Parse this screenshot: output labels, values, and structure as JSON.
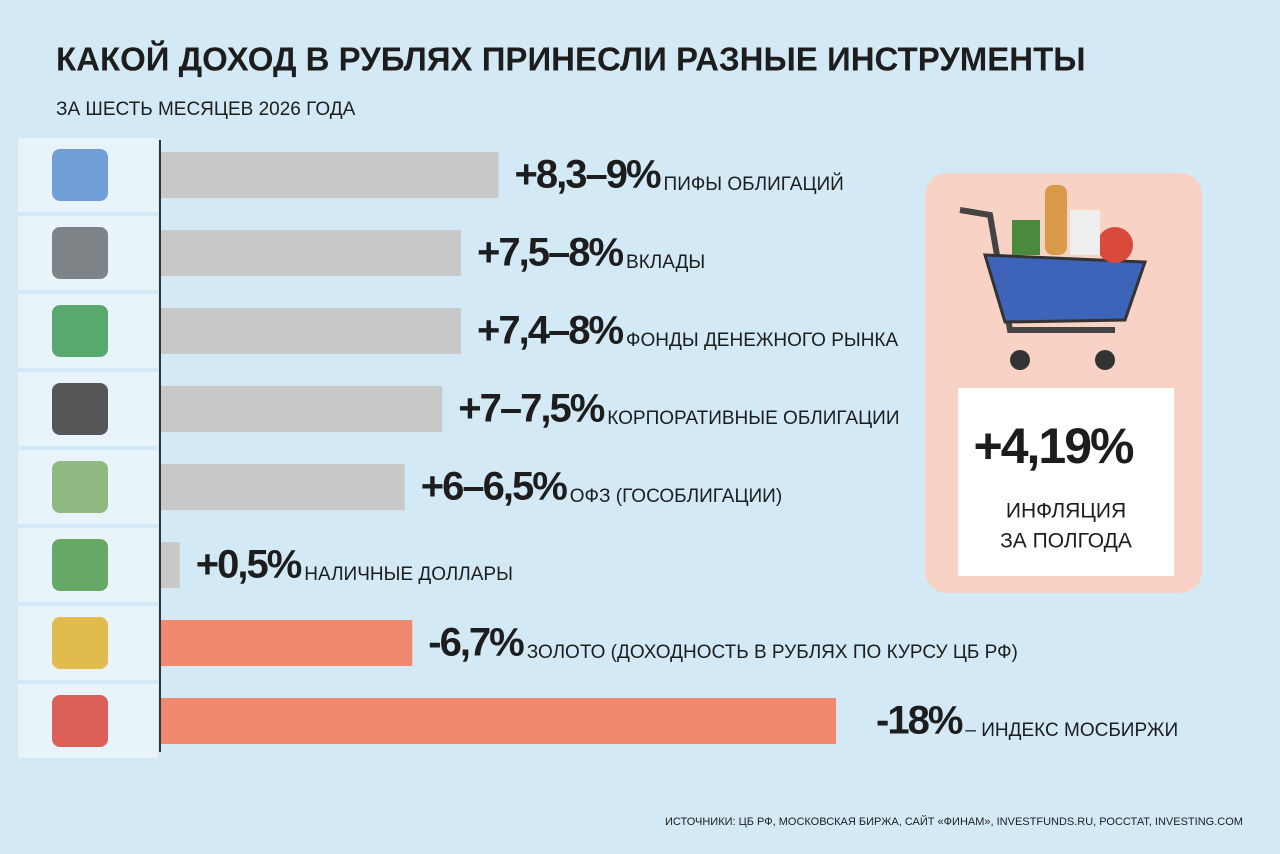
{
  "chart_data": {
    "type": "bar",
    "orientation": "horizontal",
    "title": "КАКОЙ ДОХОД В РУБЛЯХ ПРИНЕСЛИ РАЗНЫЕ ИНСТРУМЕНТЫ",
    "subtitle": "ЗА ШЕСТЬ МЕСЯЦЕВ 2026 ГОДА",
    "categories": [
      "ПИФЫ ОБЛИГАЦИЙ",
      "ВКЛАДЫ",
      "ФОНДЫ ДЕНЕЖНОГО РЫНКА",
      "КОРПОРАТИВНЫЕ ОБЛИГАЦИИ",
      "ОФЗ (ГОСОБЛИГАЦИИ)",
      "НАЛИЧНЫЕ ДОЛЛАРЫ",
      "ЗОЛОТО (ДОХОДНОСТЬ В РУБЛЯХ ПО КУРСУ ЦБ РФ)",
      "– ИНДЕКС МОСБИРЖИ"
    ],
    "values": [
      9,
      8,
      8,
      7.5,
      6.5,
      0.5,
      -6.7,
      -18
    ],
    "value_labels": [
      "+8,3–9%",
      "+7,5–8%",
      "+7,4–8%",
      "+7–7,5%",
      "+6–6,5%",
      "+0,5%",
      "-6,7%",
      "-18%"
    ],
    "positive_color": "#c9c9c9",
    "negative_color": "#f0896d",
    "label_color": "#3b8fc2",
    "inflation": {
      "value_label": "+4,19%",
      "value": 4.19,
      "lines": [
        "ИНФЛЯЦИЯ",
        "ЗА ПОЛГОДА"
      ]
    },
    "source": "ИСТОЧНИКИ: ЦБ РФ, МОСКОВСКАЯ БИРЖА, САЙТ «ФИНАМ», INVESTFUNDS.RU, РОССТАТ, INVESTING.COM"
  }
}
